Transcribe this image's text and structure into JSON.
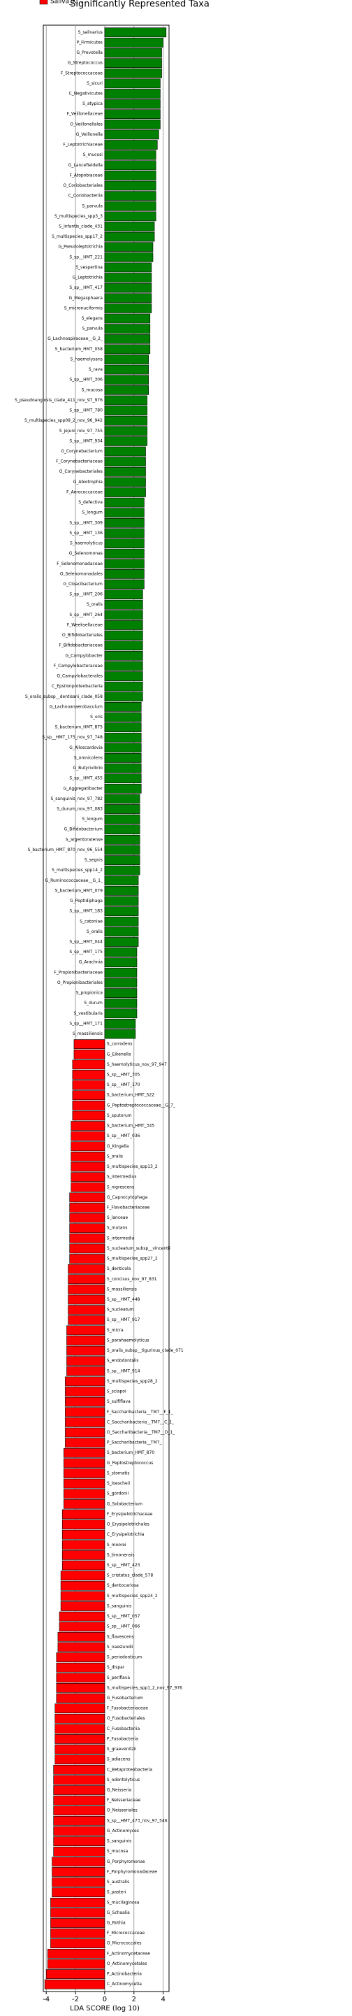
{
  "chart_data": {
    "type": "lda_bar",
    "title": "Significantly Represented Taxa",
    "xlabel": "LDA SCORE (log 10)",
    "xlim": [
      -4.2,
      4.4
    ],
    "xticks": [
      -4,
      -2,
      0,
      2,
      4
    ],
    "grid": true,
    "legend": "top-left",
    "series": [
      {
        "color": "#008000",
        "categories": [
          "S_salivarius",
          "P_Firmicutes",
          "G_Prevotella",
          "G_Streptococcus",
          "F_Streptococcaceae",
          "S_sicuri",
          "C_Negativicutes",
          "S_atypica",
          "F_Veillonellaceae",
          "O_Veillonellales",
          "G_Veillonella",
          "F_Leptotrichiaceae",
          "S_mucosi",
          "G_Lancefieldella",
          "F_Atopobiaceae",
          "O_Coriobacteriales",
          "C_Coriobacteriia",
          "S_parvula",
          "S_multispecies_spp3_3",
          "S_infantis_clade_431",
          "S_multispecies_spp17_2",
          "G_Pseudoleptotrichia",
          "S_sp__HMT_221",
          "S_vespertina",
          "G_Leptotrichia",
          "S_sp__HMT_417",
          "G_Megasphaera",
          "S_micronuciformis",
          "S_elegans",
          "S_parvula",
          "G_Lachnospiraceae__G_2_",
          "S_bacterium_HMT_058",
          "S_haemolysans",
          "S_rava",
          "S_sp__HMT_306",
          "S_mucosa",
          "S_pseudoangiosis_clade_411_nov_97_976",
          "S_sp__HMT_780",
          "S_multispecies_spp09_2_nov_96_942",
          "S_jejuni_nov_97_755",
          "S_sp__HMT_934",
          "G_Corynebacterium",
          "F_Corynebacteriaceae",
          "O_Corynebacteriales",
          "G_Abiotrophia",
          "F_Aerococcaceae",
          "S_defectiva",
          "S_longum",
          "S_sp__HMT_309",
          "S_sp__HMT_136",
          "S_haemolyticus",
          "G_Selenomonas",
          "F_Selenomonadaceae",
          "O_Selenomonadales",
          "G_Cloacibacterium",
          "S_sp__HMT_206",
          "S_oralis",
          "S_sp__HMT_264",
          "F_Weeksellaceae",
          "O_Bifidobacteriales",
          "F_Bifidobacteriaceae",
          "G_Campylobacter",
          "F_Campylobacteraceae",
          "O_Campylobacterales",
          "C_Epsilonproteobacteria",
          "S_oralis_subsp__dentisani_clade_058",
          "G_Lachnoanaerobaculum",
          "S_oris",
          "S_bacterium_HMT_875",
          "S_sp__HMT_175_nov_97_748",
          "G_Alloscardovia",
          "S_omnicolens",
          "G_Butyrivibrio",
          "S_sp__HMT_455",
          "G_Aggregatibacter",
          "S_sanguinis_nov_97_782",
          "S_durum_nov_97_083",
          "S_longum",
          "G_Bifidobacterium",
          "S_argentoratense",
          "S_bacterium_HMT_870_nov_96_554",
          "S_segnis",
          "S_multispecies_spp14_2",
          "G_Ruminococcaceae__G_1_",
          "S_bacterium_HMT_079",
          "G_Peptidiphaga",
          "S_sp__HMT_183",
          "S_catoniae",
          "S_oralis",
          "S_sp__HMT_044",
          "S_sp__HMT_175",
          "G_Arachnia",
          "F_Propionibacteriaceae",
          "O_Propionibacteriales",
          "S_propionica",
          "S_durum",
          "S_vestibularis",
          "S_sp__HMT_171",
          "S_massiliensis"
        ],
        "values": [
          4.2,
          4.0,
          3.9,
          3.9,
          3.9,
          3.8,
          3.8,
          3.8,
          3.8,
          3.8,
          3.7,
          3.6,
          3.5,
          3.5,
          3.5,
          3.5,
          3.5,
          3.5,
          3.5,
          3.4,
          3.4,
          3.3,
          3.3,
          3.2,
          3.2,
          3.2,
          3.2,
          3.2,
          3.1,
          3.1,
          3.1,
          3.1,
          3.0,
          3.0,
          3.0,
          3.0,
          2.9,
          2.9,
          2.9,
          2.9,
          2.9,
          2.8,
          2.8,
          2.8,
          2.8,
          2.8,
          2.7,
          2.7,
          2.7,
          2.7,
          2.7,
          2.7,
          2.7,
          2.7,
          2.7,
          2.6,
          2.6,
          2.6,
          2.6,
          2.6,
          2.6,
          2.6,
          2.6,
          2.6,
          2.6,
          2.6,
          2.5,
          2.5,
          2.5,
          2.5,
          2.5,
          2.5,
          2.5,
          2.5,
          2.5,
          2.4,
          2.4,
          2.4,
          2.4,
          2.4,
          2.4,
          2.4,
          2.4,
          2.3,
          2.3,
          2.3,
          2.3,
          2.3,
          2.3,
          2.3,
          2.2,
          2.2,
          2.2,
          2.2,
          2.2,
          2.2,
          2.2,
          2.1,
          2.1
        ]
      },
      {
        "name": "Saliva_K...",
        "color": "#ff0000",
        "categories": [
          "S_corrodens",
          "G_Eikenella",
          "S_haemolyticus_nov_97_947",
          "S_sp__HMT_305",
          "S_sp__HMT_170",
          "S_bacterium_HMT_522",
          "G_Peptostreptococcaceae__G_7_",
          "S_sputorum",
          "S_bacterium_HMT_345",
          "S_sp__HMT_036",
          "G_Kingella",
          "S_oralis",
          "S_multispecies_spp13_2",
          "S_intermedius",
          "S_nigrescens",
          "G_Capnocytophaga",
          "F_Flavobacteriaceae",
          "S_lanceae",
          "S_mutans",
          "S_intermedia",
          "S_nucleatum_subsp__vincentii",
          "S_multispecies_spp27_2",
          "S_denticola",
          "S_concisus_nov_97_831",
          "S_massiliensis",
          "S_sp__HMT_448",
          "S_nucleatum",
          "S_sp__HMT_917",
          "S_micra",
          "S_parahaemolyticus",
          "S_oralis_subsp__tigurinus_clade_071",
          "S_endodontalis",
          "S_sp__HMT_914",
          "S_multispecies_spp28_2",
          "S_sciapoi",
          "S_sulfiflava",
          "F_Saccharibacteria__TM7__F_1_",
          "C_Saccharibacteria__TM7__C_1_",
          "O_Saccharibacteria__TM7__O_1_",
          "P_Saccharibacteria__TM7_",
          "S_bacterium_HMT_870",
          "G_Peptostreptococcus",
          "S_stomatis",
          "S_loescheii",
          "S_gordonii",
          "G_Solobacterium",
          "F_Erysipelotrichaceae",
          "O_Erysipelotrichales",
          "C_Erysipelotrichia",
          "S_moorei",
          "S_timonensis",
          "S_sp__HMT_423",
          "S_cristatus_clade_578",
          "S_dentocariosa",
          "S_multispecies_spp24_2",
          "S_sanguinis",
          "S_sp__HMT_057",
          "S_sp__HMT_066",
          "S_flavescens",
          "S_naeslundii",
          "S_periodonticum",
          "S_dispar",
          "S_periflava",
          "S_multispecies_spp1_2_nov_97_976",
          "G_Fusobacterium",
          "F_Fusobacteriaceae",
          "O_Fusobacteriales",
          "C_Fusobacteriia",
          "P_Fusobacteria",
          "S_graevenitzii",
          "S_adiacens",
          "C_Betaproteobacteria",
          "S_odontolyticus",
          "G_Neisseria",
          "F_Neisseriaceae",
          "O_Neisseriales",
          "S_sp__HMT_473_nov_97_546",
          "G_Actinomyces",
          "S_sanguinis",
          "S_mucosa",
          "G_Porphyromonas",
          "F_Porphyromonadaceae",
          "S_australis",
          "S_pasteri",
          "S_mucilaginosa",
          "G_Schaalia",
          "G_Rothia",
          "F_Micrococcaceae",
          "O_Micrococcales",
          "F_Actinomycetaceae",
          "O_Actinomycetales",
          "P_Actinobacteria",
          "C_Actinomycetia"
        ],
        "values": [
          -2.1,
          -2.1,
          -2.2,
          -2.2,
          -2.2,
          -2.2,
          -2.2,
          -2.2,
          -2.3,
          -2.3,
          -2.3,
          -2.3,
          -2.3,
          -2.3,
          -2.3,
          -2.4,
          -2.4,
          -2.4,
          -2.4,
          -2.4,
          -2.4,
          -2.4,
          -2.5,
          -2.5,
          -2.5,
          -2.5,
          -2.5,
          -2.5,
          -2.6,
          -2.6,
          -2.6,
          -2.6,
          -2.6,
          -2.7,
          -2.7,
          -2.7,
          -2.7,
          -2.7,
          -2.7,
          -2.7,
          -2.8,
          -2.8,
          -2.8,
          -2.8,
          -2.8,
          -2.8,
          -2.9,
          -2.9,
          -2.9,
          -2.9,
          -2.9,
          -2.9,
          -3.0,
          -3.0,
          -3.0,
          -3.0,
          -3.1,
          -3.1,
          -3.2,
          -3.2,
          -3.3,
          -3.3,
          -3.3,
          -3.3,
          -3.3,
          -3.4,
          -3.4,
          -3.4,
          -3.4,
          -3.4,
          -3.4,
          -3.5,
          -3.5,
          -3.5,
          -3.5,
          -3.5,
          -3.5,
          -3.5,
          -3.5,
          -3.5,
          -3.6,
          -3.6,
          -3.6,
          -3.6,
          -3.7,
          -3.7,
          -3.7,
          -3.7,
          -3.7,
          -3.9,
          -3.9,
          -4.0,
          -4.1
        ]
      }
    ]
  }
}
